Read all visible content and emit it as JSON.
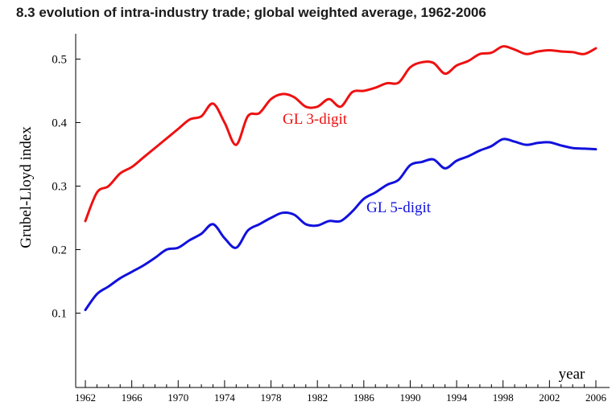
{
  "chart_data": {
    "type": "line",
    "title": "8.3 evolution of intra-industry trade; global weighted average, 1962-2006",
    "xlabel": "year",
    "ylabel": "Grubel-Lloyd index",
    "xlim": [
      1962,
      2006
    ],
    "ylim": [
      0.0,
      0.54
    ],
    "x_ticks": [
      1962,
      1966,
      1970,
      1974,
      1978,
      1982,
      1986,
      1990,
      1994,
      1998,
      2002,
      2006
    ],
    "y_ticks": [
      0.1,
      0.2,
      0.3,
      0.4,
      0.5
    ],
    "grid": false,
    "legend": "inline-labels",
    "x": [
      1962,
      1963,
      1964,
      1965,
      1966,
      1967,
      1968,
      1969,
      1970,
      1971,
      1972,
      1973,
      1974,
      1975,
      1976,
      1977,
      1978,
      1979,
      1980,
      1981,
      1982,
      1983,
      1984,
      1985,
      1986,
      1987,
      1988,
      1989,
      1990,
      1991,
      1992,
      1993,
      1994,
      1995,
      1996,
      1997,
      1998,
      1999,
      2000,
      2001,
      2002,
      2003,
      2004,
      2005,
      2006
    ],
    "series": [
      {
        "name": "GL 3-digit",
        "color": "#ee1111",
        "values": [
          0.245,
          0.29,
          0.3,
          0.32,
          0.33,
          0.345,
          0.36,
          0.375,
          0.39,
          0.405,
          0.41,
          0.43,
          0.4,
          0.365,
          0.41,
          0.415,
          0.437,
          0.445,
          0.44,
          0.425,
          0.425,
          0.437,
          0.425,
          0.448,
          0.45,
          0.455,
          0.462,
          0.463,
          0.487,
          0.495,
          0.494,
          0.477,
          0.49,
          0.497,
          0.508,
          0.51,
          0.52,
          0.515,
          0.508,
          0.512,
          0.514,
          0.512,
          0.511,
          0.508,
          0.517
        ]
      },
      {
        "name": "GL 5-digit",
        "color": "#1111dd",
        "values": [
          0.105,
          0.13,
          0.142,
          0.155,
          0.165,
          0.175,
          0.187,
          0.2,
          0.203,
          0.215,
          0.225,
          0.24,
          0.218,
          0.203,
          0.23,
          0.24,
          0.25,
          0.258,
          0.255,
          0.24,
          0.238,
          0.245,
          0.245,
          0.26,
          0.28,
          0.29,
          0.302,
          0.31,
          0.333,
          0.338,
          0.342,
          0.328,
          0.34,
          0.347,
          0.356,
          0.363,
          0.374,
          0.37,
          0.365,
          0.368,
          0.369,
          0.364,
          0.36,
          0.359,
          0.358
        ]
      }
    ]
  }
}
